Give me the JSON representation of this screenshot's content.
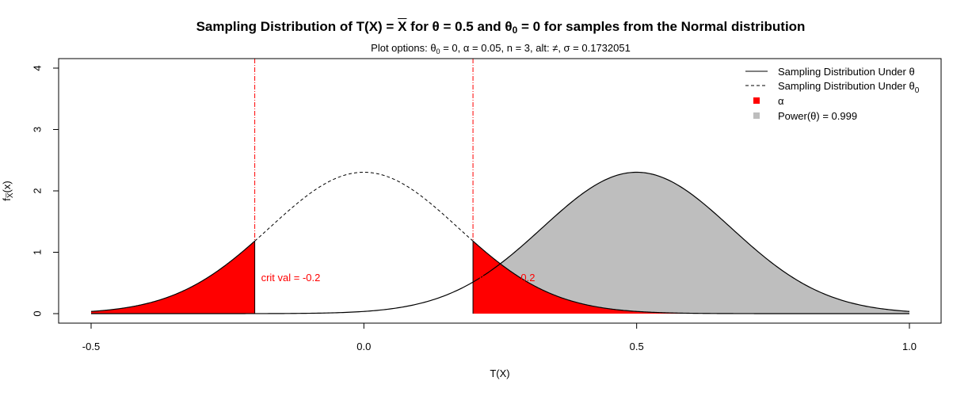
{
  "chart_data": {
    "type": "area",
    "title_parts": {
      "a": "Sampling Distribution of T(X) = ",
      "xbar": "X",
      "b": " for θ = 0.5 and θ",
      "sub": "0",
      "c": " = 0 for samples from the Normal distribution"
    },
    "subtitle_parts": {
      "a": "Plot options: θ",
      "sub": "0",
      "b": " = 0, α = 0.05, n = 3, alt: ≠, σ = 0.1732051"
    },
    "xlabel": "T(X)",
    "ylabel": {
      "main": "f",
      "sub": "X̅",
      "tail": "(x)"
    },
    "xlim": [
      -0.5,
      1.0
    ],
    "ylim": [
      0,
      4
    ],
    "x_ticks": [
      -0.5,
      0.0,
      0.5,
      1.0
    ],
    "x_tick_labels": [
      "-0.5",
      "0.0",
      "0.5",
      "1.0"
    ],
    "y_ticks": [
      0,
      1,
      2,
      3,
      4
    ],
    "y_tick_labels": [
      "0",
      "1",
      "2",
      "3",
      "4"
    ],
    "sigma": 0.1732051,
    "theta": 0.5,
    "theta0": 0,
    "critical_values": [
      -0.2,
      0.2
    ],
    "crit_labels": [
      "crit val = -0.2",
      "crit val = 0.2"
    ],
    "series": [
      {
        "name": "Sampling Distribution Under θ",
        "mean": 0.5,
        "style": "solid"
      },
      {
        "name": "Sampling Distribution Under θ0",
        "mean": 0,
        "style": "dashed"
      }
    ],
    "legend": {
      "position": "top-right",
      "items": [
        {
          "label": "Sampling Distribution Under θ",
          "type": "line-solid"
        },
        {
          "label": "Sampling Distribution Under θ",
          "sub": "0",
          "type": "line-dashed"
        },
        {
          "label": "α",
          "type": "square-red"
        },
        {
          "label": "Power(θ) = 0.999",
          "type": "square-gray"
        }
      ]
    },
    "colors": {
      "alpha": "#ff0000",
      "power": "#bebebe",
      "crit_line": "#ff0000",
      "curve": "#000000"
    }
  }
}
